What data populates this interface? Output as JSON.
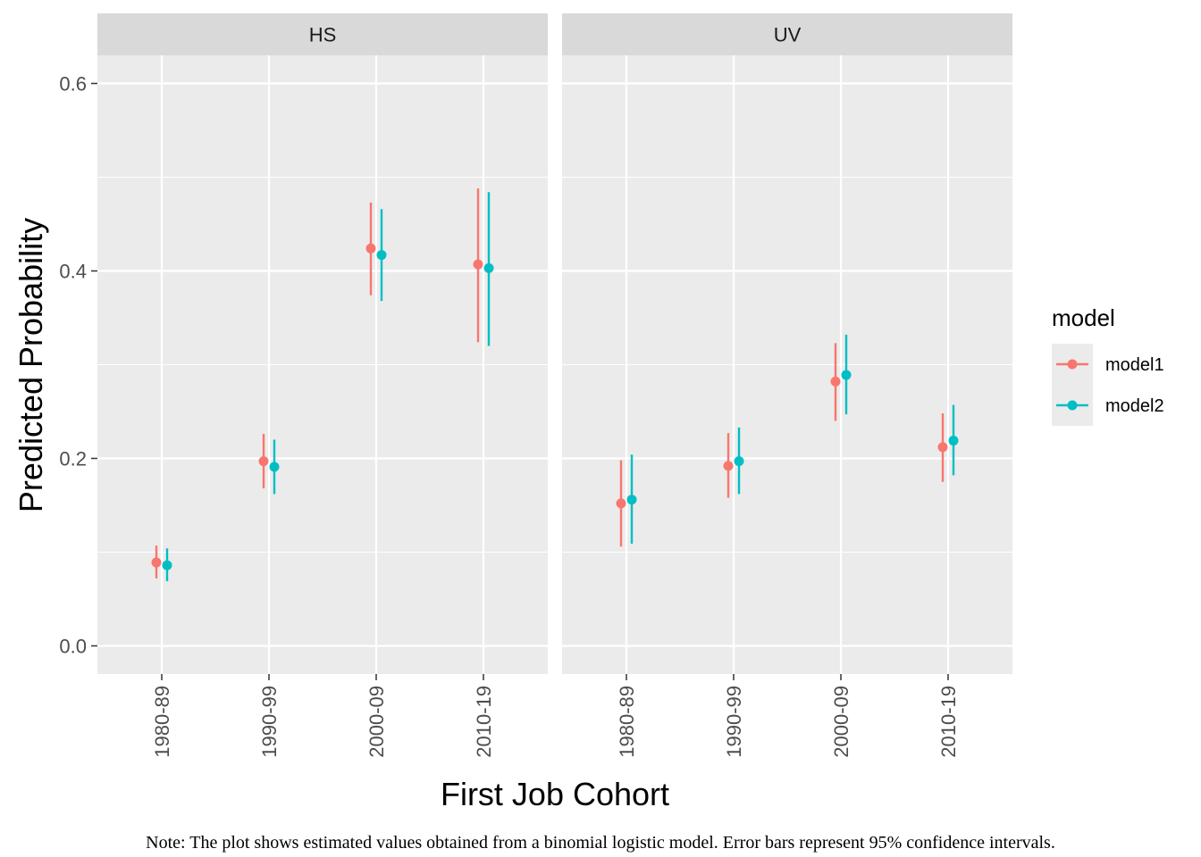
{
  "chart_data": {
    "type": "scatter",
    "subtype": "point-range (dot with error bars), faceted",
    "xlabel": "First Job Cohort",
    "ylabel": "Predicted Probability",
    "ylim": [
      -0.03,
      0.63
    ],
    "y_ticks": [
      "0.0",
      "0.2",
      "0.4",
      "0.6"
    ],
    "y_tick_values": [
      0,
      0.2,
      0.4,
      0.6
    ],
    "categories": [
      "1980-89",
      "1990-99",
      "2000-09",
      "2010-19"
    ],
    "legend": {
      "title": "model",
      "position": "right",
      "entries": [
        "model1",
        "model2"
      ]
    },
    "grid": true,
    "colors": {
      "model1": "#F8766D",
      "model2": "#00BFC4",
      "panel_bg": "#EBEBEB",
      "strip_bg": "#D9D9D9",
      "grid": "#FFFFFF"
    },
    "facets": [
      {
        "label": "HS",
        "series": [
          {
            "name": "model1",
            "values": [
              0.089,
              0.197,
              0.424,
              0.407
            ],
            "lower": [
              0.072,
              0.168,
              0.374,
              0.324
            ],
            "upper": [
              0.107,
              0.226,
              0.473,
              0.488
            ]
          },
          {
            "name": "model2",
            "values": [
              0.086,
              0.191,
              0.417,
              0.403
            ],
            "lower": [
              0.069,
              0.162,
              0.368,
              0.32
            ],
            "upper": [
              0.104,
              0.22,
              0.466,
              0.484
            ]
          }
        ]
      },
      {
        "label": "UV",
        "series": [
          {
            "name": "model1",
            "values": [
              0.152,
              0.192,
              0.282,
              0.212
            ],
            "lower": [
              0.106,
              0.158,
              0.24,
              0.175
            ],
            "upper": [
              0.198,
              0.227,
              0.323,
              0.248
            ]
          },
          {
            "name": "model2",
            "values": [
              0.156,
              0.197,
              0.289,
              0.219
            ],
            "lower": [
              0.109,
              0.162,
              0.247,
              0.182
            ],
            "upper": [
              0.204,
              0.233,
              0.332,
              0.257
            ]
          }
        ]
      }
    ]
  },
  "note": "Note: The plot shows estimated values obtained from a binomial logistic model. Error bars represent 95% confidence intervals."
}
